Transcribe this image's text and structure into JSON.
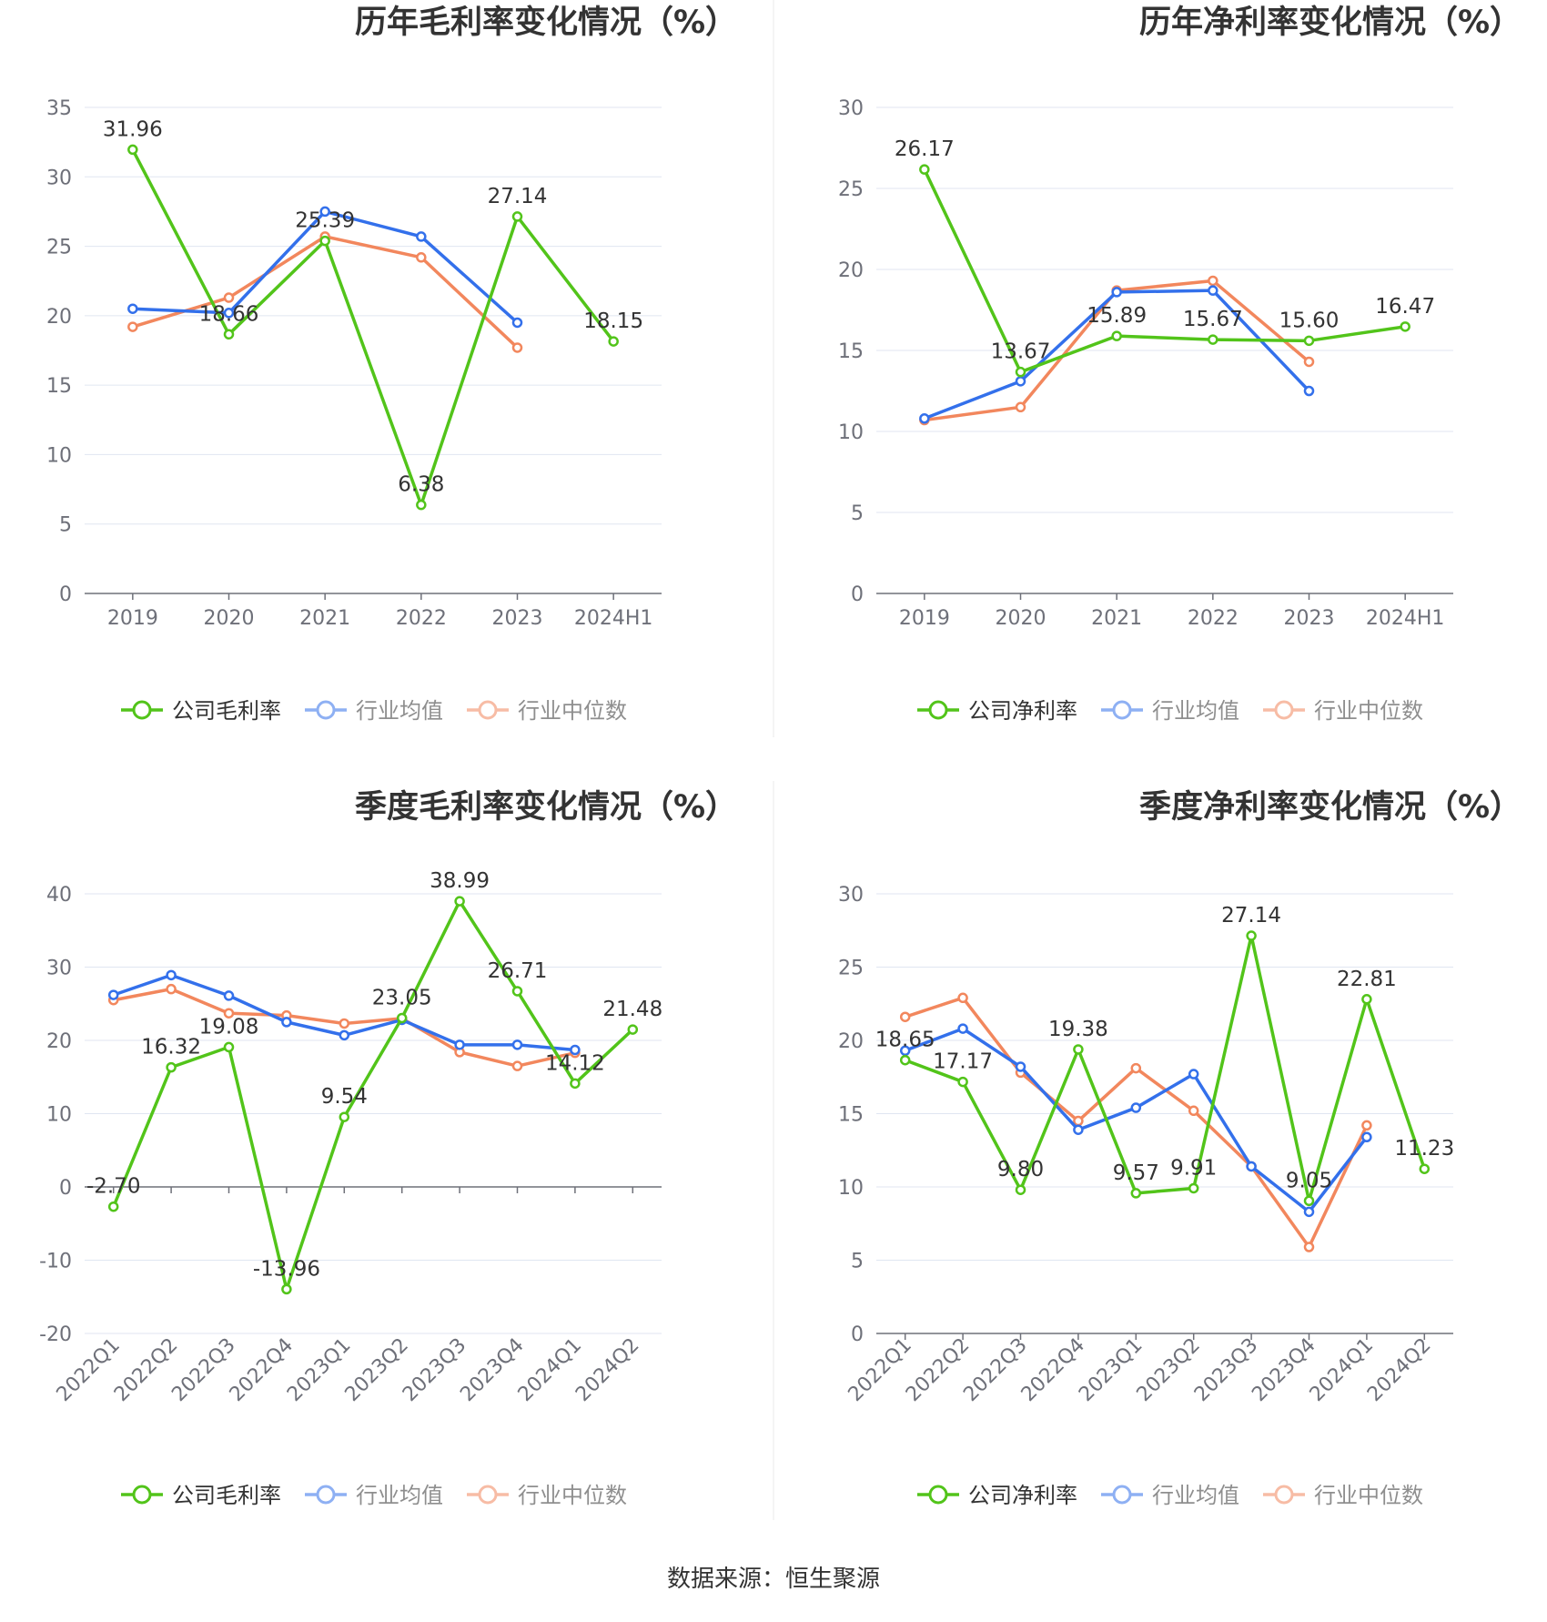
{
  "colors": {
    "company": "#52c41a",
    "avg": "#3370eb",
    "median": "#f2875d",
    "grid": "#e0e6f1",
    "axis": "#6e7079"
  },
  "legend_icon": "circle-line-icon",
  "source": "数据来源：恒生聚源",
  "chart_data": [
    {
      "type": "line",
      "title": "历年毛利率变化情况（%）",
      "categories": [
        "2019",
        "2020",
        "2021",
        "2022",
        "2023",
        "2024H1"
      ],
      "ylim": [
        0,
        35
      ],
      "yticks": [
        0,
        5,
        10,
        15,
        20,
        25,
        30,
        35
      ],
      "grid": true,
      "legend_position": "bottom",
      "series": [
        {
          "name": "公司毛利率",
          "values": [
            31.96,
            18.66,
            25.39,
            6.38,
            27.14,
            18.15
          ],
          "labels": [
            "31.96",
            "18.66",
            "25.39",
            "6.38",
            "27.14",
            "18.15"
          ]
        },
        {
          "name": "行业均值",
          "values": [
            20.5,
            20.2,
            27.5,
            25.7,
            19.5,
            null
          ]
        },
        {
          "name": "行业中位数",
          "values": [
            19.2,
            21.3,
            25.7,
            24.2,
            17.7,
            null
          ]
        }
      ]
    },
    {
      "type": "line",
      "title": "历年净利率变化情况（%）",
      "categories": [
        "2019",
        "2020",
        "2021",
        "2022",
        "2023",
        "2024H1"
      ],
      "ylim": [
        0,
        30
      ],
      "yticks": [
        0,
        5,
        10,
        15,
        20,
        25,
        30
      ],
      "grid": true,
      "legend_position": "bottom",
      "series": [
        {
          "name": "公司净利率",
          "values": [
            26.17,
            13.67,
            15.89,
            15.67,
            15.6,
            16.47
          ],
          "labels": [
            "26.17",
            "13.67",
            "15.89",
            "15.67",
            "15.60",
            "16.47"
          ]
        },
        {
          "name": "行业均值",
          "values": [
            10.8,
            13.1,
            18.6,
            18.7,
            12.5,
            null
          ]
        },
        {
          "name": "行业中位数",
          "values": [
            10.7,
            11.5,
            18.7,
            19.3,
            14.3,
            null
          ]
        }
      ]
    },
    {
      "type": "line",
      "title": "季度毛利率变化情况（%）",
      "categories": [
        "2022Q1",
        "2022Q2",
        "2022Q3",
        "2022Q4",
        "2023Q1",
        "2023Q2",
        "2023Q3",
        "2023Q4",
        "2024Q1",
        "2024Q2"
      ],
      "ylim": [
        -20,
        40
      ],
      "yticks": [
        -20,
        -10,
        0,
        10,
        20,
        30,
        40
      ],
      "grid": true,
      "legend_position": "bottom",
      "series": [
        {
          "name": "公司毛利率",
          "values": [
            -2.7,
            16.32,
            19.08,
            -13.96,
            9.54,
            23.05,
            38.99,
            26.71,
            14.12,
            21.48
          ],
          "labels": [
            "-2.70",
            "16.32",
            "19.08",
            "-13.96",
            "9.54",
            "23.05",
            "38.99",
            "26.71",
            "14.12",
            "21.48"
          ]
        },
        {
          "name": "行业均值",
          "values": [
            26.2,
            28.9,
            26.1,
            22.5,
            20.7,
            22.8,
            19.4,
            19.4,
            18.7,
            null
          ]
        },
        {
          "name": "行业中位数",
          "values": [
            25.5,
            27.0,
            23.7,
            23.4,
            22.3,
            23.0,
            18.4,
            16.5,
            18.3,
            null
          ]
        }
      ]
    },
    {
      "type": "line",
      "title": "季度净利率变化情况（%）",
      "categories": [
        "2022Q1",
        "2022Q2",
        "2022Q3",
        "2022Q4",
        "2023Q1",
        "2023Q2",
        "2023Q3",
        "2023Q4",
        "2024Q1",
        "2024Q2"
      ],
      "ylim": [
        0,
        30
      ],
      "yticks": [
        0,
        5,
        10,
        15,
        20,
        25,
        30
      ],
      "grid": true,
      "legend_position": "bottom",
      "series": [
        {
          "name": "公司净利率",
          "values": [
            18.65,
            17.17,
            9.8,
            19.38,
            9.57,
            9.91,
            27.14,
            9.05,
            22.81,
            11.23
          ],
          "labels": [
            "18.65",
            "17.17",
            "9.80",
            "19.38",
            "9.57",
            "9.91",
            "27.14",
            "9.05",
            "22.81",
            "11.23"
          ]
        },
        {
          "name": "行业均值",
          "values": [
            19.3,
            20.8,
            18.2,
            13.9,
            15.4,
            17.7,
            11.4,
            8.3,
            13.4,
            null
          ]
        },
        {
          "name": "行业中位数",
          "values": [
            21.6,
            22.9,
            17.8,
            14.5,
            18.1,
            15.2,
            11.4,
            5.9,
            14.2,
            null
          ]
        }
      ]
    }
  ]
}
